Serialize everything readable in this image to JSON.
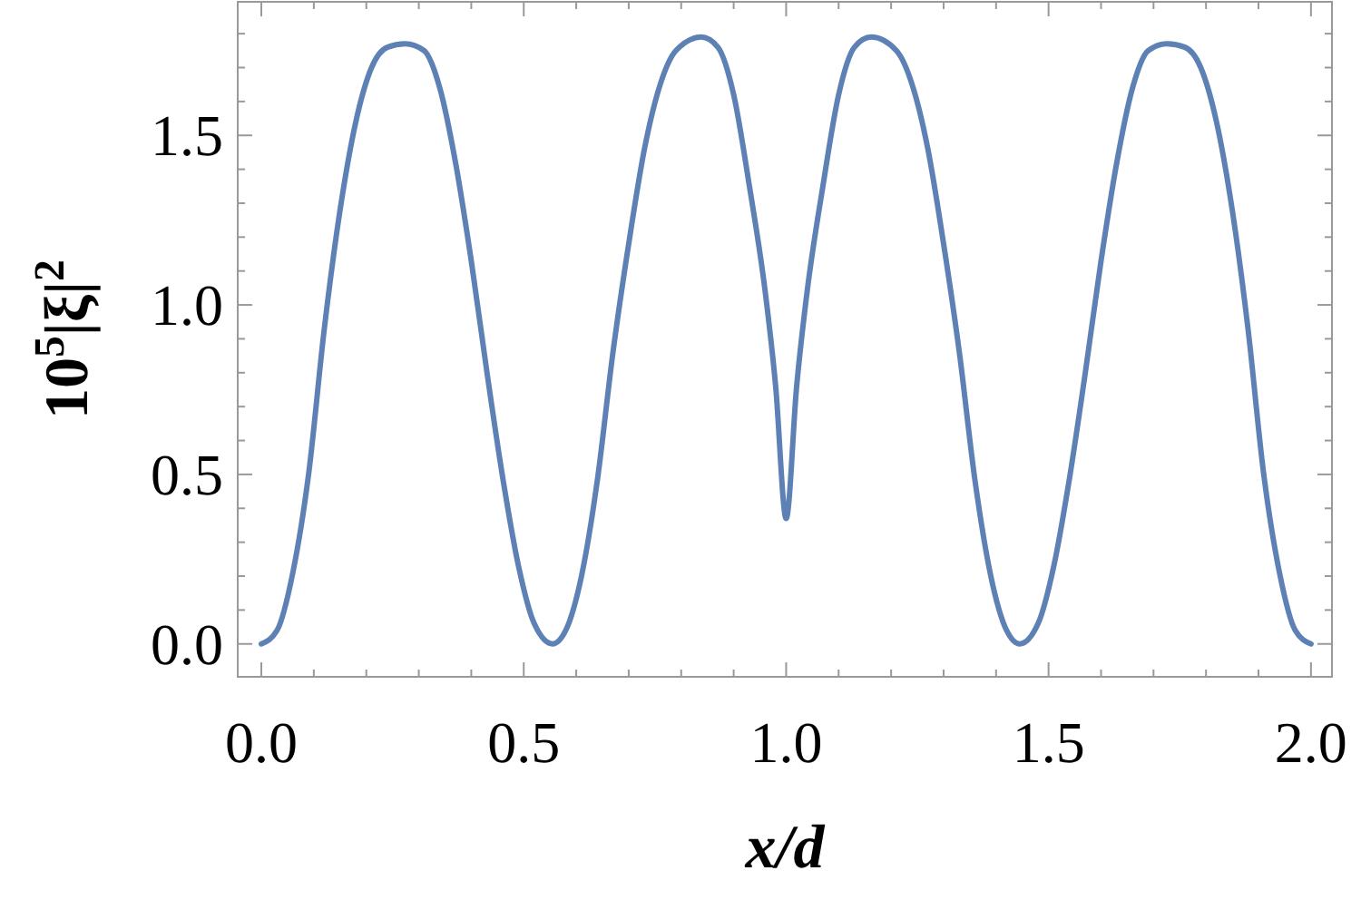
{
  "chart_data": {
    "type": "line",
    "xlabel": "x/d",
    "ylabel": "10$^{5}$|ξ|$^{2}$",
    "xlim": [
      -0.045,
      2.04
    ],
    "ylim": [
      -0.097,
      1.894
    ],
    "xticks": [
      {
        "value": 0,
        "label": "0.0"
      },
      {
        "value": 0.1,
        "label": null
      },
      {
        "value": 0.2,
        "label": null
      },
      {
        "value": 0.3,
        "label": null
      },
      {
        "value": 0.4,
        "label": null
      },
      0.5,
      {
        "value": 0.6,
        "label": null
      },
      {
        "value": 0.7,
        "label": null
      },
      {
        "value": 0.8,
        "label": null
      },
      {
        "value": 0.9,
        "label": null
      },
      {
        "value": 1,
        "label": "1.0"
      },
      {
        "value": 1.1,
        "label": null
      },
      {
        "value": 1.2,
        "label": null
      },
      {
        "value": 1.3,
        "label": null
      },
      {
        "value": 1.4,
        "label": null
      },
      1.5,
      {
        "value": 1.6,
        "label": null
      },
      {
        "value": 1.7,
        "label": null
      },
      {
        "value": 1.8,
        "label": null
      },
      {
        "value": 1.9,
        "label": null
      },
      {
        "value": 2,
        "label": "2.0"
      }
    ],
    "yticks": [
      {
        "value": 0,
        "label": "0.0"
      },
      {
        "value": 0.1,
        "label": null
      },
      {
        "value": 0.2,
        "label": null
      },
      {
        "value": 0.3,
        "label": null
      },
      {
        "value": 0.4,
        "label": null
      },
      0.5,
      {
        "value": 0.6,
        "label": null
      },
      {
        "value": 0.7,
        "label": null
      },
      {
        "value": 0.8,
        "label": null
      },
      {
        "value": 0.9,
        "label": null
      },
      {
        "value": 1,
        "label": "1.0"
      },
      {
        "value": 1.1,
        "label": null
      },
      {
        "value": 1.2,
        "label": null
      },
      {
        "value": 1.3,
        "label": null
      },
      {
        "value": 1.4,
        "label": null
      },
      1.5,
      {
        "value": 1.6,
        "label": null
      },
      {
        "value": 1.7,
        "label": null
      },
      {
        "value": 1.8,
        "label": null
      }
    ],
    "grid": false,
    "marker": "none",
    "line_style": "solid",
    "x": [
      0,
      0.03,
      0.06,
      0.09,
      0.12,
      0.15,
      0.18,
      0.21,
      0.24,
      0.274,
      0.31,
      0.34,
      0.37,
      0.4,
      0.43,
      0.46,
      0.49,
      0.52,
      0.555,
      0.58,
      0.61,
      0.64,
      0.67,
      0.7,
      0.73,
      0.76,
      0.79,
      0.838,
      0.87,
      0.9,
      0.93,
      0.96,
      0.98,
      1,
      1.02,
      1.04,
      1.07,
      1.1,
      1.13,
      1.162,
      1.21,
      1.24,
      1.27,
      1.3,
      1.33,
      1.36,
      1.39,
      1.42,
      1.445,
      1.48,
      1.51,
      1.54,
      1.57,
      1.6,
      1.63,
      1.66,
      1.69,
      1.726,
      1.76,
      1.79,
      1.82,
      1.85,
      1.88,
      1.91,
      1.94,
      1.97,
      2
    ],
    "series": [
      {
        "color": "#5e81b5",
        "values": [
          0,
          0.04,
          0.21,
          0.5,
          0.93,
          1.28,
          1.54,
          1.7,
          1.76,
          1.77,
          1.75,
          1.64,
          1.42,
          1.13,
          0.8,
          0.49,
          0.23,
          0.06,
          0,
          0.04,
          0.2,
          0.48,
          0.86,
          1.18,
          1.46,
          1.65,
          1.75,
          1.79,
          1.76,
          1.62,
          1.35,
          1.04,
          0.76,
          0.37,
          0.76,
          1.04,
          1.35,
          1.62,
          1.76,
          1.79,
          1.75,
          1.65,
          1.46,
          1.18,
          0.86,
          0.48,
          0.2,
          0.04,
          0,
          0.06,
          0.23,
          0.49,
          0.8,
          1.13,
          1.42,
          1.64,
          1.75,
          1.77,
          1.76,
          1.7,
          1.54,
          1.28,
          0.93,
          0.5,
          0.21,
          0.04,
          0
        ]
      }
    ]
  }
}
